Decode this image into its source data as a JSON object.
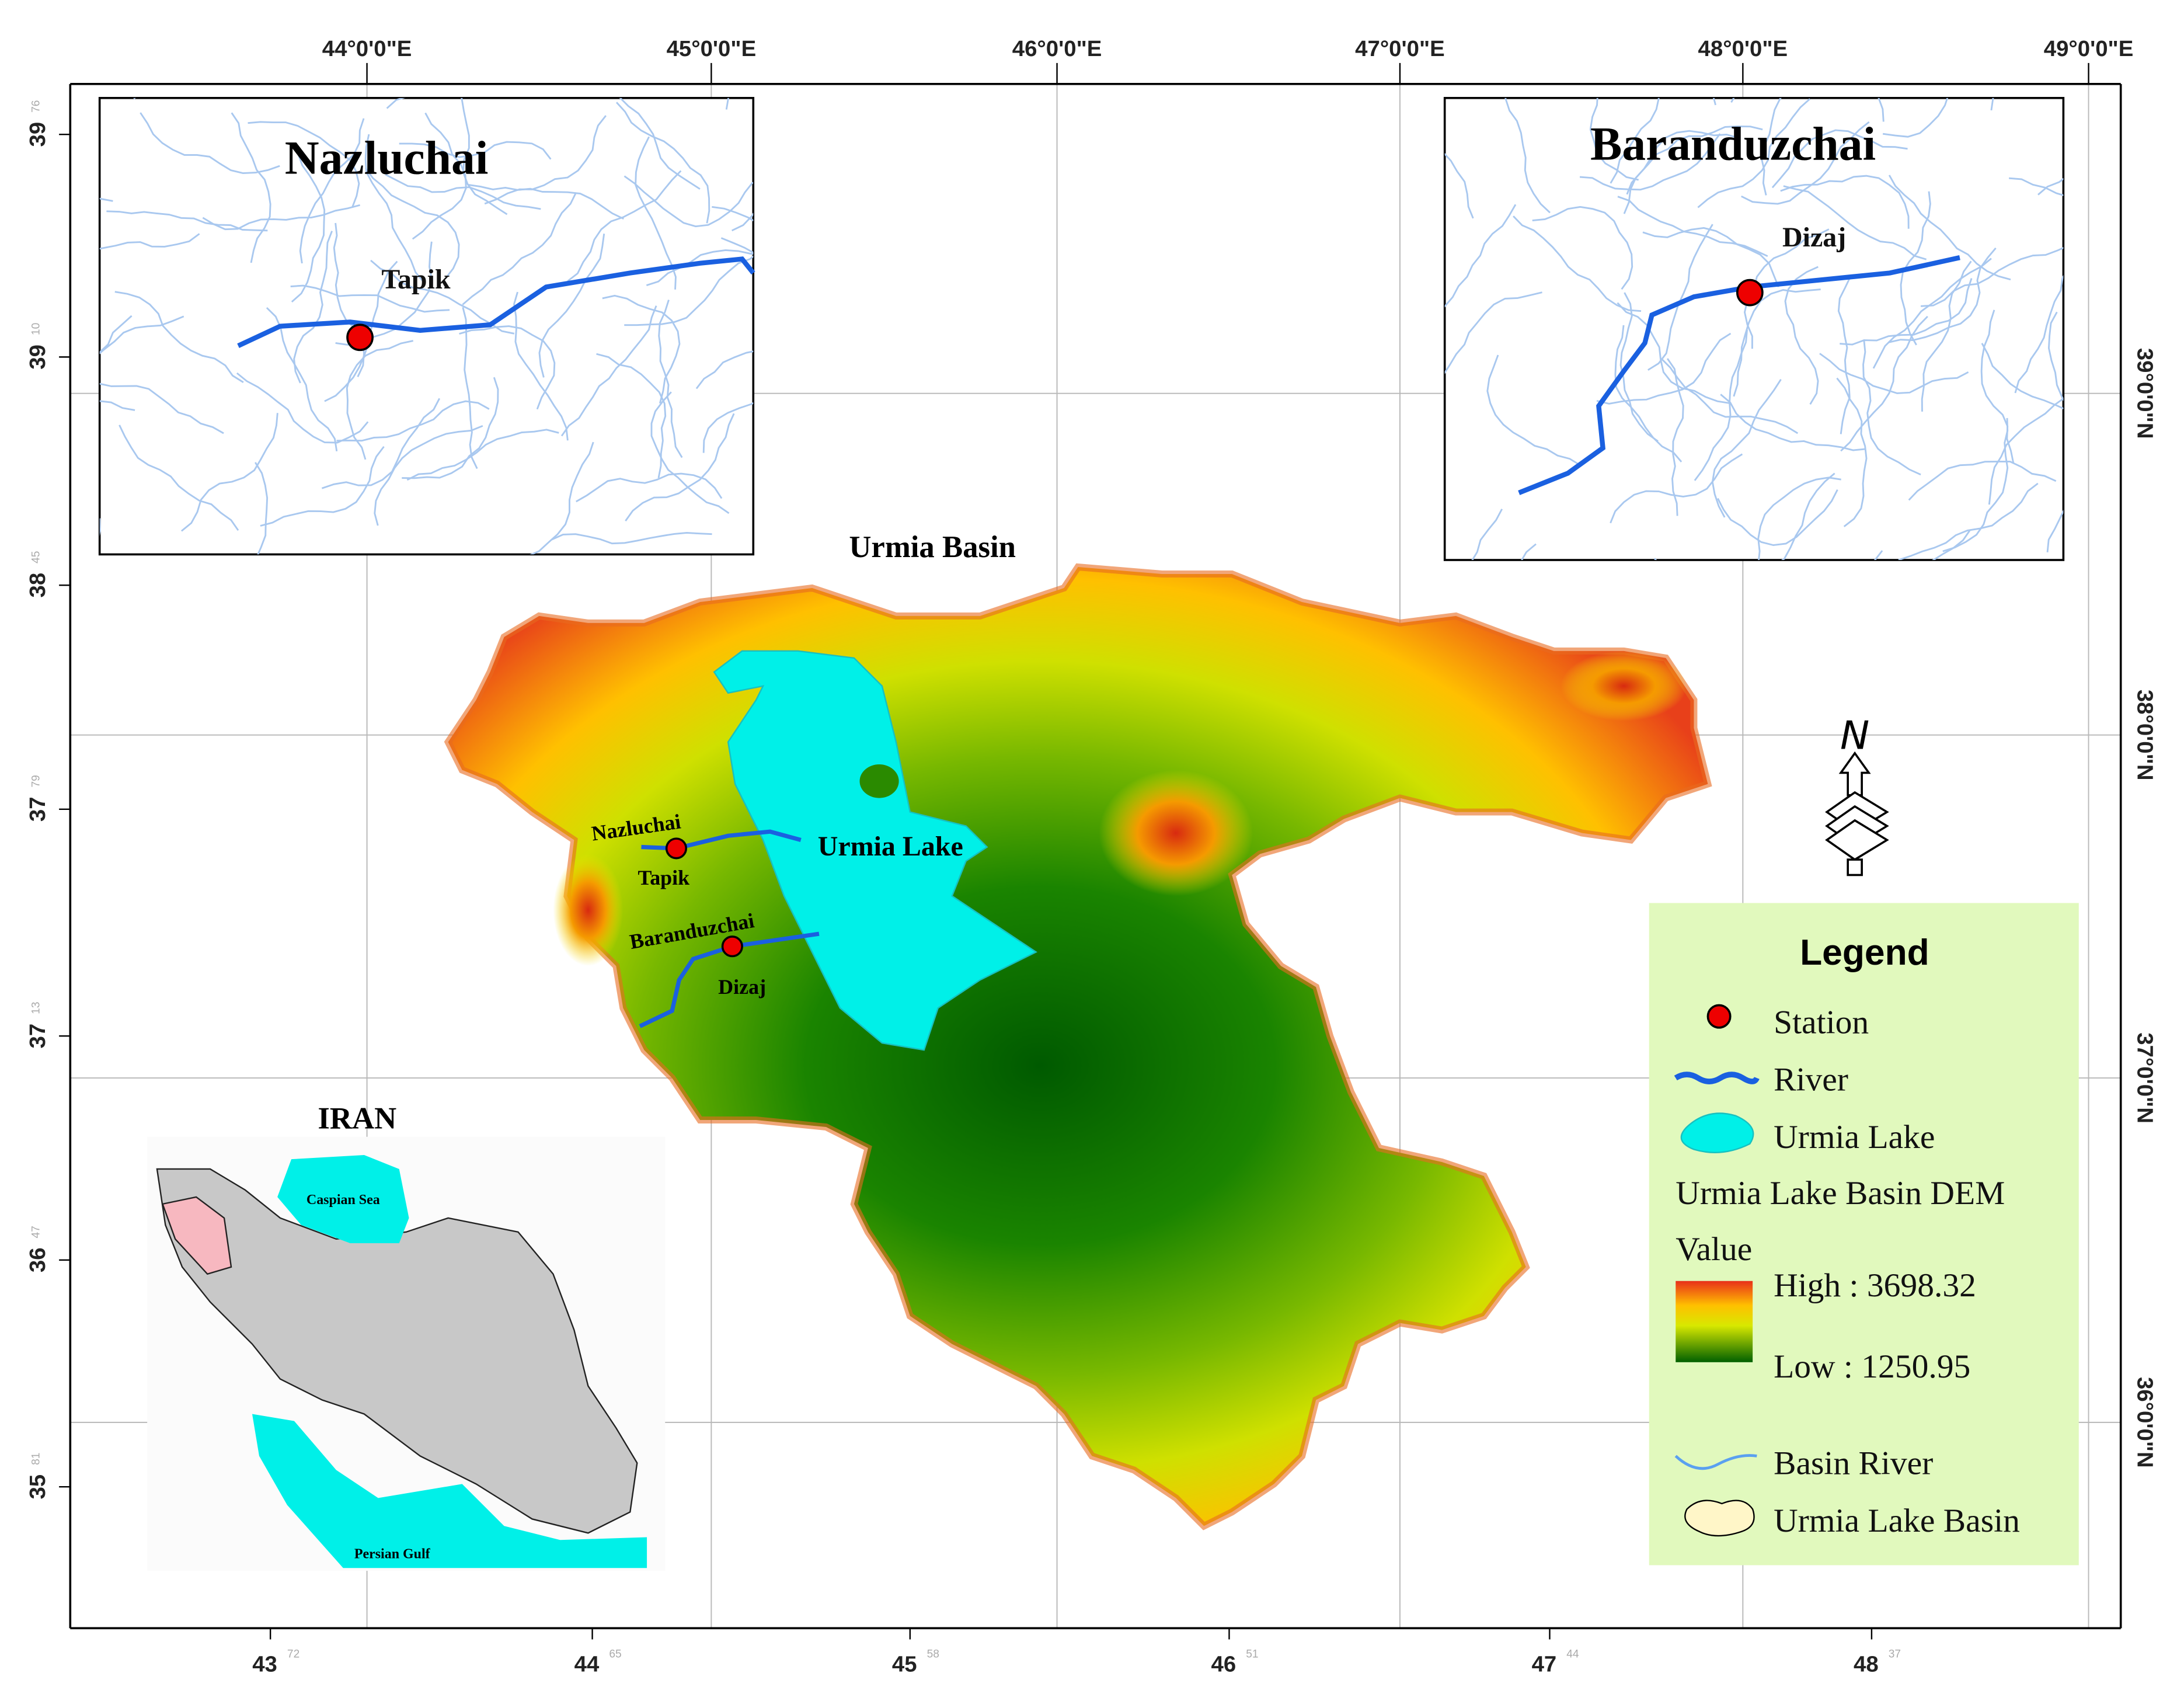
{
  "top_axis": [
    "44°0'0\"E",
    "45°0'0\"E",
    "46°0'0\"E",
    "47°0'0\"E",
    "48°0'0\"E",
    "49°0'0\"E"
  ],
  "right_axis": [
    "39°0'0\"N",
    "38°0'0\"N",
    "37°0'0\"N",
    "36°0'0\"N"
  ],
  "left_axis": [
    {
      "deg": "39",
      "frac": "76"
    },
    {
      "deg": "39",
      "frac": "10"
    },
    {
      "deg": "38",
      "frac": "45"
    },
    {
      "deg": "37",
      "frac": "79"
    },
    {
      "deg": "37",
      "frac": "13"
    },
    {
      "deg": "36",
      "frac": "47"
    },
    {
      "deg": "35",
      "frac": "81"
    }
  ],
  "bottom_axis": [
    {
      "deg": "43",
      "frac": "72"
    },
    {
      "deg": "44",
      "frac": "65"
    },
    {
      "deg": "45",
      "frac": "58"
    },
    {
      "deg": "46",
      "frac": "51"
    },
    {
      "deg": "47",
      "frac": "44"
    },
    {
      "deg": "48",
      "frac": "37"
    }
  ],
  "map": {
    "title": "Urmia Basin",
    "lake": "Urmia Lake",
    "stations": [
      {
        "river": "Nazluchai",
        "station": "Tapik"
      },
      {
        "river": "Baranduzchai",
        "station": "Dizaj"
      }
    ]
  },
  "insets": [
    {
      "title": "Nazluchai",
      "station": "Tapik"
    },
    {
      "title": "Baranduzchai",
      "station": "Dizaj"
    }
  ],
  "iran_inset": {
    "title": "IRAN",
    "caspian": "Caspian Sea",
    "gulf": "Persian Gulf"
  },
  "north_arrow": "N",
  "legend": {
    "title": "Legend",
    "station": "Station",
    "river": "River",
    "lake": "Urmia Lake",
    "dem_title": "Urmia Lake Basin DEM",
    "dem_value": "Value",
    "high": "High : 3698.32",
    "low": "Low : 1250.95",
    "basin_river": "Basin River",
    "basin": "Urmia Lake Basin"
  }
}
